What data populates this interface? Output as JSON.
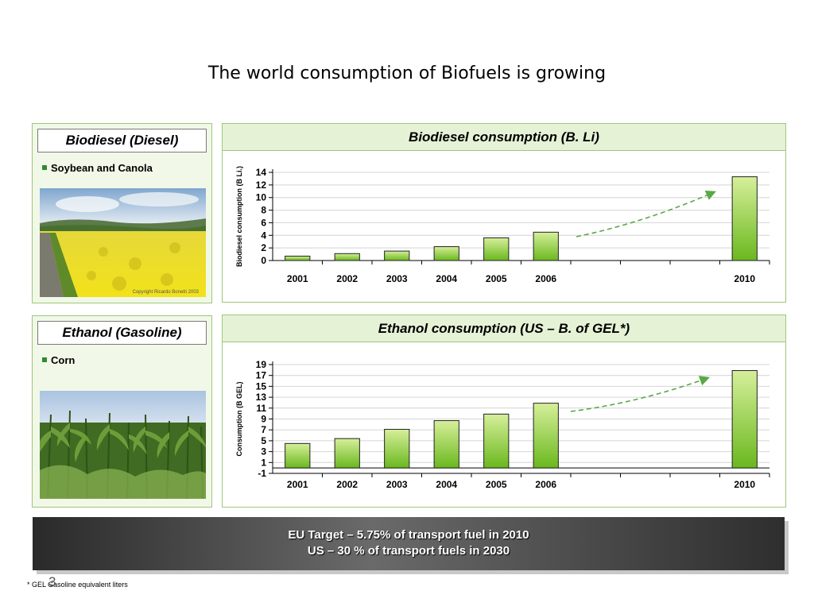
{
  "slide": {
    "title": "The world consumption of Biofuels is growing",
    "page_number": "3",
    "footnote": "* GEL Gasoline equivalent liters"
  },
  "biodiesel_panel": {
    "label": "Biodiesel (Diesel)",
    "bullet": "Soybean and Canola",
    "photo_caption": "Copyright Ricardo Bonetti 2003"
  },
  "ethanol_panel": {
    "label": "Ethanol (Gasoline)",
    "bullet": "Corn"
  },
  "banner": {
    "line1": "EU Target – 5.75% of transport fuel in 2010",
    "line2": "US – 30 % of transport fuels in 2030"
  },
  "colors": {
    "bar_light": "#d6ef9a",
    "bar_dark": "#6ab81e",
    "arrow": "#5aa848",
    "panel_border": "#9ec77a",
    "header_fill": "#e6f2d6"
  },
  "chart_data": [
    {
      "type": "bar",
      "title": "Biodiesel consumption (B. Li)",
      "ylabel": "Biodiesel consumption (B Li.)",
      "xlabel": "",
      "categories": [
        "2001",
        "2002",
        "2003",
        "2004",
        "2005",
        "2006",
        "",
        "",
        "",
        "2010"
      ],
      "values": [
        0.7,
        1.1,
        1.5,
        2.2,
        3.6,
        4.5,
        null,
        null,
        null,
        13.3
      ],
      "ylim": [
        0,
        14
      ],
      "yticks": [
        0,
        2,
        4,
        6,
        8,
        10,
        12,
        14
      ],
      "grid": true,
      "trend_arrow": true
    },
    {
      "type": "bar",
      "title": "Ethanol consumption (US – B. of GEL*)",
      "ylabel": "Consumption (B GEL)",
      "xlabel": "",
      "categories": [
        "2001",
        "2002",
        "2003",
        "2004",
        "2005",
        "2006",
        "",
        "",
        "",
        "2010"
      ],
      "values": [
        4.5,
        5.4,
        7.1,
        8.7,
        9.9,
        11.9,
        null,
        null,
        null,
        17.9
      ],
      "ylim": [
        -1,
        19
      ],
      "yticks": [
        -1,
        1,
        3,
        5,
        7,
        9,
        11,
        13,
        15,
        17,
        19
      ],
      "grid": true,
      "trend_arrow": true
    }
  ]
}
